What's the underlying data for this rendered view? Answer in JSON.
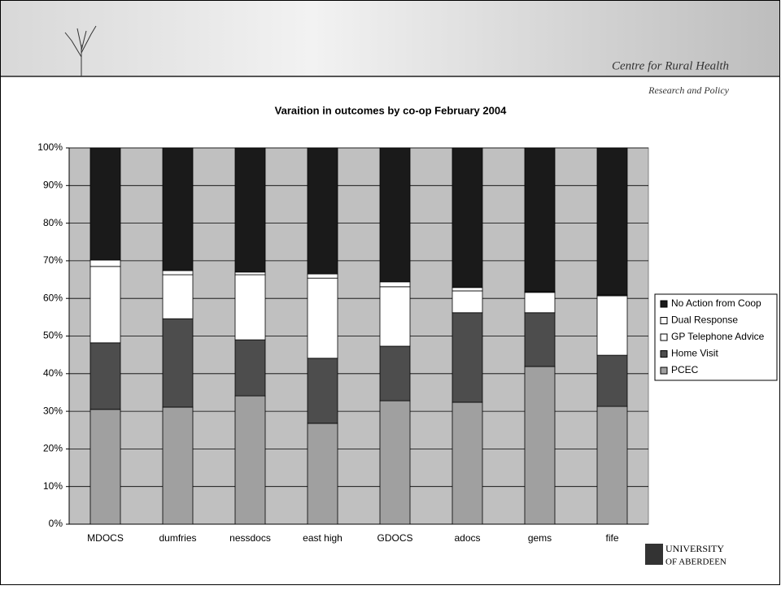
{
  "header": {
    "centre": "Centre for Rural Health",
    "sub": "Research and Policy",
    "university": "UNIVERSITY",
    "of": "OF ABERDEEN"
  },
  "chart_data": {
    "type": "stacked_bar",
    "title": "Varaition in outcomes by co-op February 2004",
    "categories": [
      "MDOCS",
      "dumfries",
      "nessdocs",
      "east high",
      "GDOCS",
      "adocs",
      "gems",
      "fife"
    ],
    "series": [
      {
        "name": "PCEC",
        "color": "#a0a0a0",
        "values": [
          30.5,
          31.1,
          34.1,
          26.8,
          32.8,
          32.4,
          41.9,
          31.3
        ]
      },
      {
        "name": "Home Visit",
        "color": "#4d4d4d",
        "values": [
          17.7,
          23.5,
          14.9,
          17.3,
          14.5,
          23.8,
          14.3,
          13.6
        ]
      },
      {
        "name": "GP Telephone Advice",
        "color": "#ffffff",
        "values": [
          20.3,
          11.7,
          17.3,
          21.3,
          15.8,
          5.8,
          5.4,
          15.8
        ]
      },
      {
        "name": "Dual Response",
        "color": "#ffffff",
        "values": [
          1.7,
          1.1,
          0.7,
          1.1,
          1.3,
          0.9,
          0.2,
          0.2
        ]
      },
      {
        "name": "No Action from Coop",
        "color": "#1a1a1a",
        "values": [
          29.8,
          32.6,
          33.0,
          33.5,
          35.6,
          37.1,
          38.2,
          39.1
        ]
      }
    ],
    "ylim": [
      0,
      100
    ],
    "yticks": [
      {
        "value": 0,
        "label": "0%"
      },
      {
        "value": 10,
        "label": "10%"
      },
      {
        "value": 20,
        "label": "20%"
      },
      {
        "value": 30,
        "label": "30%"
      },
      {
        "value": 40,
        "label": "40%"
      },
      {
        "value": 50,
        "label": "50%"
      },
      {
        "value": 60,
        "label": "60%"
      },
      {
        "value": 70,
        "label": "70%"
      },
      {
        "value": 80,
        "label": "80%"
      },
      {
        "value": 90,
        "label": "90%"
      },
      {
        "value": 100,
        "label": "100%"
      }
    ],
    "grid": true,
    "legend": "right"
  }
}
